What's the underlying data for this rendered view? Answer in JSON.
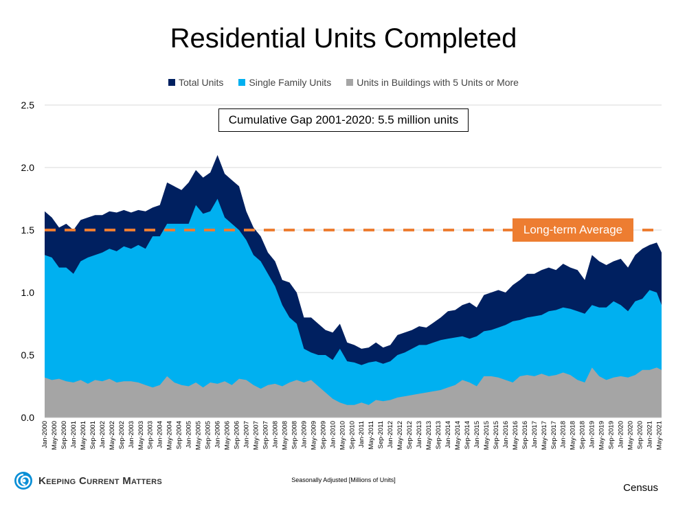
{
  "chart_data": {
    "type": "area",
    "title": "Residential Units Completed",
    "ylim": [
      0,
      2.5
    ],
    "yticks": [
      "0.0",
      "0.5",
      "1.0",
      "1.5",
      "2.0",
      "2.5"
    ],
    "grid": true,
    "legend_position": "top",
    "x": [
      "Jan-2000",
      "Apr-2000",
      "Jul-2000",
      "Oct-2000",
      "Jan-2001",
      "Apr-2001",
      "Jul-2001",
      "Oct-2001",
      "Jan-2002",
      "Apr-2002",
      "Jul-2002",
      "Oct-2002",
      "Jan-2003",
      "Apr-2003",
      "Jul-2003",
      "Oct-2003",
      "Jan-2004",
      "Apr-2004",
      "Jul-2004",
      "Oct-2004",
      "Jan-2005",
      "Apr-2005",
      "Jul-2005",
      "Oct-2005",
      "Jan-2006",
      "Apr-2006",
      "Jul-2006",
      "Oct-2006",
      "Jan-2007",
      "Apr-2007",
      "Jul-2007",
      "Oct-2007",
      "Jan-2008",
      "Apr-2008",
      "Jul-2008",
      "Oct-2008",
      "Jan-2009",
      "Apr-2009",
      "Jul-2009",
      "Oct-2009",
      "Jan-2010",
      "Apr-2010",
      "Jul-2010",
      "Oct-2010",
      "Jan-2011",
      "Apr-2011",
      "Jul-2011",
      "Oct-2011",
      "Jan-2012",
      "Apr-2012",
      "Jul-2012",
      "Oct-2012",
      "Jan-2013",
      "Apr-2013",
      "Jul-2013",
      "Oct-2013",
      "Jan-2014",
      "Apr-2014",
      "Jul-2014",
      "Oct-2014",
      "Jan-2015",
      "Apr-2015",
      "Jul-2015",
      "Oct-2015",
      "Jan-2016",
      "Apr-2016",
      "Jul-2016",
      "Oct-2016",
      "Jan-2017",
      "Apr-2017",
      "Jul-2017",
      "Oct-2017",
      "Jan-2018",
      "Apr-2018",
      "Jul-2018",
      "Oct-2018",
      "Jan-2019",
      "Apr-2019",
      "Jul-2019",
      "Oct-2019",
      "Jan-2020",
      "Apr-2020",
      "Jul-2020",
      "Oct-2020",
      "Jan-2021",
      "Apr-2021",
      "Jun-2021"
    ],
    "xticks": [
      "Jan-2000",
      "May-2000",
      "Sep-2000",
      "Jan-2001",
      "May-2001",
      "Sep-2001",
      "Jan-2002",
      "May-2002",
      "Sep-2002",
      "Jan-2003",
      "May-2003",
      "Sep-2003",
      "Jan-2004",
      "May-2004",
      "Sep-2004",
      "Jan-2005",
      "May-2005",
      "Sep-2005",
      "Jan-2006",
      "May-2006",
      "Sep-2006",
      "Jan-2007",
      "May-2007",
      "Sep-2007",
      "Jan-2008",
      "May-2008",
      "Sep-2008",
      "Jan-2009",
      "May-2009",
      "Sep-2009",
      "Jan-2010",
      "May-2010",
      "Sep-2010",
      "Jan-2011",
      "May-2011",
      "Sep-2011",
      "Jan-2012",
      "May-2012",
      "Sep-2012",
      "Jan-2013",
      "May-2013",
      "Sep-2013",
      "Jan-2014",
      "May-2014",
      "Sep-2014",
      "Jan-2015",
      "May-2015",
      "Sep-2015",
      "Jan-2016",
      "May-2016",
      "Sep-2016",
      "Jan-2017",
      "May-2017",
      "Sep-2017",
      "Jan-2018",
      "May-2018",
      "Sep-2018",
      "Jan-2019",
      "May-2019",
      "Sep-2019",
      "Jan-2020",
      "May-2020",
      "Sep-2020",
      "Jan-2021",
      "May-2021"
    ],
    "series": [
      {
        "name": "Total Units",
        "color": "#002060",
        "values": [
          1.65,
          1.6,
          1.52,
          1.55,
          1.5,
          1.58,
          1.6,
          1.62,
          1.62,
          1.65,
          1.64,
          1.66,
          1.64,
          1.66,
          1.65,
          1.68,
          1.7,
          1.88,
          1.85,
          1.82,
          1.88,
          1.98,
          1.92,
          1.96,
          2.1,
          1.95,
          1.9,
          1.85,
          1.65,
          1.52,
          1.45,
          1.32,
          1.25,
          1.1,
          1.08,
          1.0,
          0.8,
          0.8,
          0.75,
          0.7,
          0.68,
          0.75,
          0.6,
          0.58,
          0.55,
          0.56,
          0.6,
          0.56,
          0.58,
          0.66,
          0.68,
          0.7,
          0.73,
          0.72,
          0.76,
          0.8,
          0.85,
          0.86,
          0.9,
          0.92,
          0.88,
          0.98,
          1.0,
          1.02,
          1.0,
          1.06,
          1.1,
          1.15,
          1.15,
          1.18,
          1.2,
          1.18,
          1.23,
          1.2,
          1.18,
          1.1,
          1.3,
          1.25,
          1.22,
          1.25,
          1.27,
          1.2,
          1.3,
          1.35,
          1.38,
          1.4,
          1.32
        ]
      },
      {
        "name": "Single Family Units",
        "color": "#00B0F0",
        "values": [
          1.3,
          1.28,
          1.2,
          1.2,
          1.15,
          1.25,
          1.28,
          1.3,
          1.32,
          1.35,
          1.33,
          1.37,
          1.35,
          1.38,
          1.35,
          1.45,
          1.45,
          1.55,
          1.55,
          1.55,
          1.55,
          1.7,
          1.63,
          1.65,
          1.75,
          1.6,
          1.55,
          1.5,
          1.42,
          1.3,
          1.25,
          1.15,
          1.05,
          0.9,
          0.8,
          0.75,
          0.55,
          0.52,
          0.5,
          0.5,
          0.46,
          0.55,
          0.45,
          0.44,
          0.42,
          0.44,
          0.45,
          0.43,
          0.45,
          0.5,
          0.52,
          0.55,
          0.58,
          0.58,
          0.6,
          0.62,
          0.63,
          0.64,
          0.65,
          0.63,
          0.65,
          0.69,
          0.7,
          0.72,
          0.74,
          0.77,
          0.78,
          0.8,
          0.81,
          0.82,
          0.85,
          0.86,
          0.88,
          0.87,
          0.85,
          0.83,
          0.9,
          0.88,
          0.88,
          0.93,
          0.9,
          0.85,
          0.93,
          0.95,
          1.02,
          1.0,
          0.9
        ]
      },
      {
        "name": "Units in Buildings with 5 Units or More",
        "color": "#A5A5A5",
        "values": [
          0.32,
          0.3,
          0.31,
          0.29,
          0.28,
          0.3,
          0.27,
          0.3,
          0.29,
          0.31,
          0.28,
          0.29,
          0.29,
          0.28,
          0.26,
          0.24,
          0.26,
          0.33,
          0.28,
          0.26,
          0.25,
          0.28,
          0.24,
          0.28,
          0.27,
          0.29,
          0.26,
          0.31,
          0.3,
          0.26,
          0.23,
          0.26,
          0.27,
          0.25,
          0.28,
          0.3,
          0.28,
          0.3,
          0.25,
          0.2,
          0.15,
          0.12,
          0.1,
          0.1,
          0.12,
          0.1,
          0.14,
          0.13,
          0.14,
          0.16,
          0.17,
          0.18,
          0.19,
          0.2,
          0.21,
          0.22,
          0.24,
          0.26,
          0.3,
          0.28,
          0.25,
          0.33,
          0.33,
          0.32,
          0.3,
          0.28,
          0.33,
          0.34,
          0.33,
          0.35,
          0.33,
          0.34,
          0.36,
          0.34,
          0.3,
          0.28,
          0.4,
          0.33,
          0.3,
          0.32,
          0.33,
          0.32,
          0.34,
          0.38,
          0.38,
          0.4,
          0.38
        ]
      }
    ],
    "reference_line": {
      "value": 1.5,
      "label": "Long-term Average",
      "color": "#ED7D31"
    },
    "annotation": "Cumulative Gap 2001-2020: 5.5 million units"
  },
  "footer": {
    "note": "Seasonally Adjusted [Millions of Units]",
    "source": "Census",
    "logo_text": "Keeping Current Matters"
  }
}
